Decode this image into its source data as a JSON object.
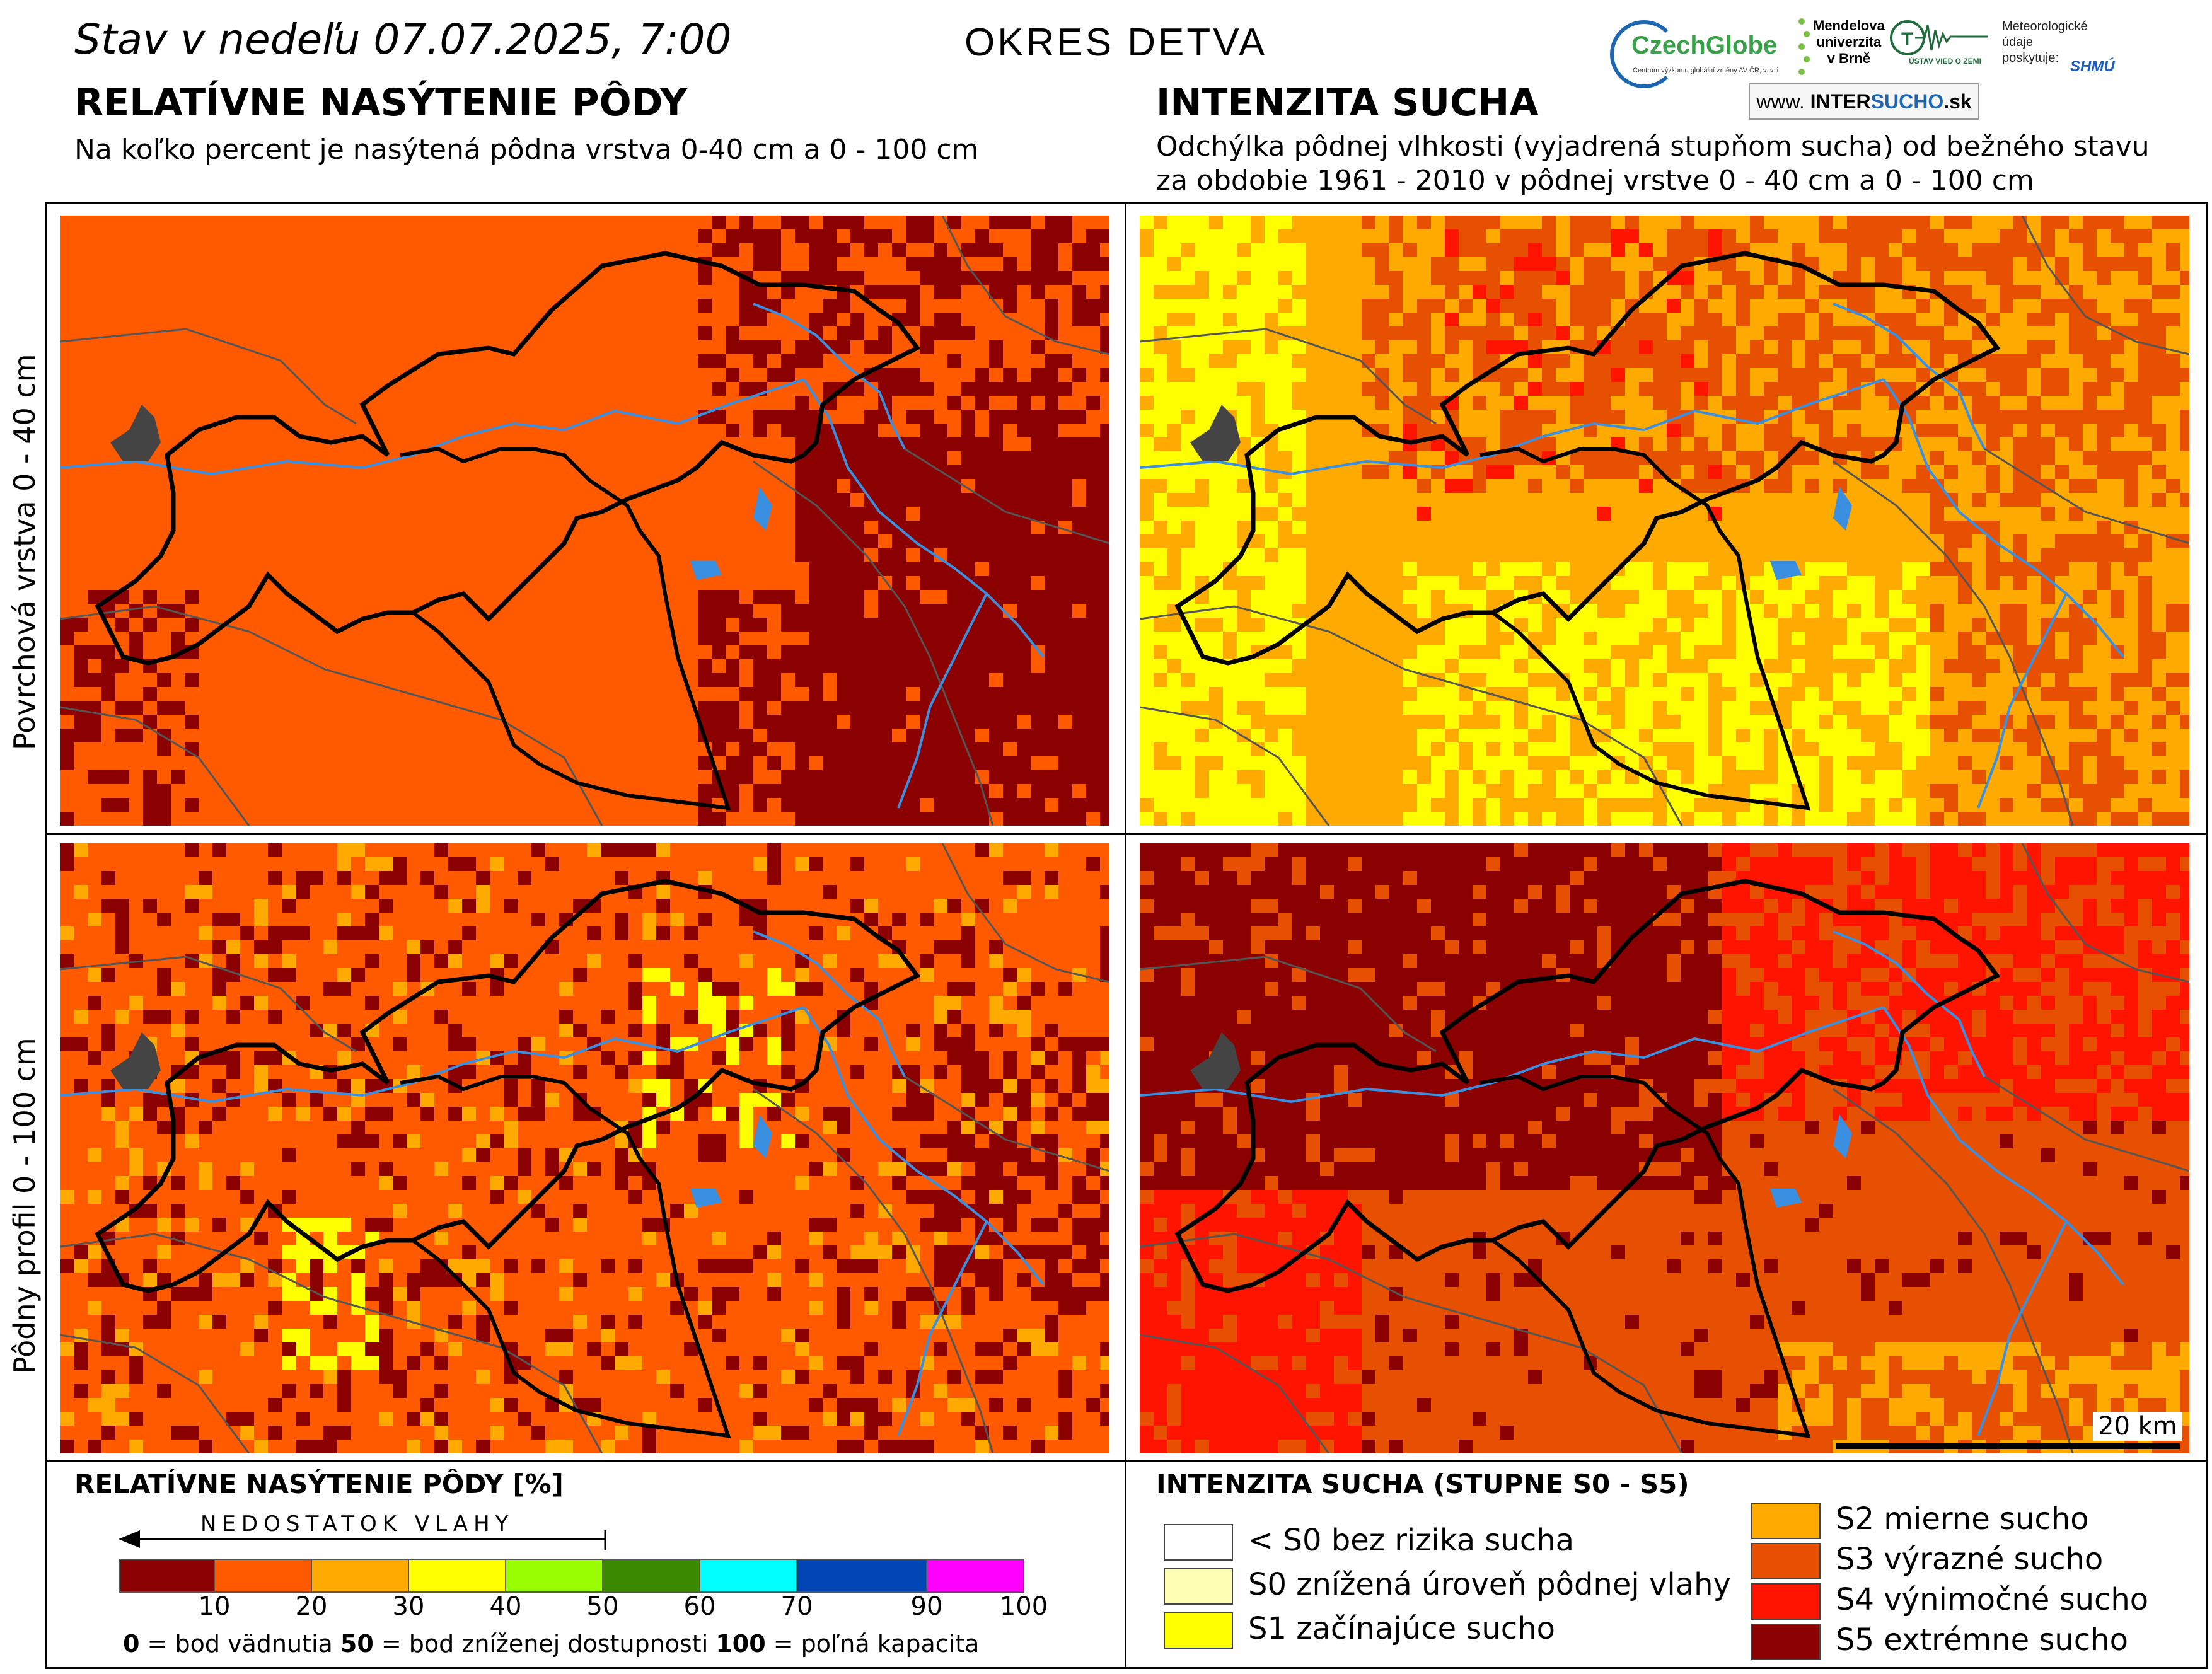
{
  "header": {
    "date": "Stav v nedeľu 07.07.2025, 7:00",
    "district": "OKRES  DETVA",
    "left_title": "RELATÍVNE NASÝTENIE PÔDY",
    "left_subtitle": "Na koľko percent je nasýtená pôdna vrstva 0-40 cm a 0 - 100 cm",
    "right_title": "INTENZITA SUCHA",
    "right_subtitle_1": "Odchýlka pôdnej vlhkosti (vyjadrená stupňom sucha) od bežného stavu",
    "right_subtitle_2": "za obdobie 1961 - 2010 v pôdnej vrstve 0 - 40 cm a 0 - 100 cm"
  },
  "logos": {
    "czechglobe": "CzechGlobe",
    "czechglobe_tag": "Centrum výzkumu globální změny AV ČR, v. v. i.",
    "mendel_1": "Mendelova",
    "mendel_2": "univerzita",
    "mendel_3": "v Brně",
    "ustav": "ÚSTAV VIED O ZEMI",
    "meteo_1": "Meteorologické",
    "meteo_2": "údaje",
    "meteo_3": "poskytuje:",
    "shmu": "SHMÚ",
    "intersucho_pre": "www.",
    "intersucho_a": "INTER",
    "intersucho_b": "SUCHO",
    "intersucho_c": ".sk"
  },
  "row_labels": {
    "top": "Povrchová vrstva 0 - 40 cm",
    "bottom": "Pôdny profil 0 - 100 cm"
  },
  "scale_bar": "20 km",
  "legend_left": {
    "title": "RELATÍVNE NASÝTENIE PÔDY [%]",
    "deficit": "NEDOSTATOK VLAHY",
    "colors": [
      "#8b0000",
      "#ff5a00",
      "#ffaa00",
      "#ffff00",
      "#99ff00",
      "#3a8a00",
      "#00ffff",
      "#0046b4",
      "#ff00ff"
    ],
    "ticks": [
      "10",
      "20",
      "30",
      "40",
      "50",
      "60",
      "70",
      "90",
      "100"
    ],
    "note_a_num": "0",
    "note_a": " = bod vädnutia  ",
    "note_b_num": "50",
    "note_b": " = bod zníženej dostupnosti  ",
    "note_c_num": "100",
    "note_c": " = poľná kapacita"
  },
  "legend_right": {
    "title": "INTENZITA SUCHA (STUPNE S0 - S5)",
    "items": [
      {
        "label": "< S0 bez rizika sucha",
        "color": "#ffffff"
      },
      {
        "label": "S0 znížená úroveň pôdnej vlahy",
        "color": "#ffffb4"
      },
      {
        "label": "S1 začínajúce sucho",
        "color": "#ffff00"
      },
      {
        "label": "S2 mierne sucho",
        "color": "#ffaa00"
      },
      {
        "label": "S3 výrazné sucho",
        "color": "#e65000"
      },
      {
        "label": "S4 výnimočné sucho",
        "color": "#ff1400"
      },
      {
        "label": "S5 extrémne sucho",
        "color": "#8b0000"
      }
    ]
  },
  "maps": {
    "top_left": {
      "background": "#ff5a00",
      "palette": [
        "#8b0000",
        "#ff5a00",
        "#e65000"
      ]
    },
    "top_right": {
      "background": "#ffaa00",
      "palette": [
        "#ffff00",
        "#ffaa00",
        "#e65000",
        "#ff1400"
      ]
    },
    "bottom_left": {
      "background": "#ff5a00",
      "palette": [
        "#8b0000",
        "#ff5a00",
        "#ffaa00",
        "#ffff00"
      ]
    },
    "bottom_right": {
      "background": "#e65000",
      "palette": [
        "#8b0000",
        "#ff1400",
        "#e65000",
        "#ffaa00"
      ]
    }
  }
}
